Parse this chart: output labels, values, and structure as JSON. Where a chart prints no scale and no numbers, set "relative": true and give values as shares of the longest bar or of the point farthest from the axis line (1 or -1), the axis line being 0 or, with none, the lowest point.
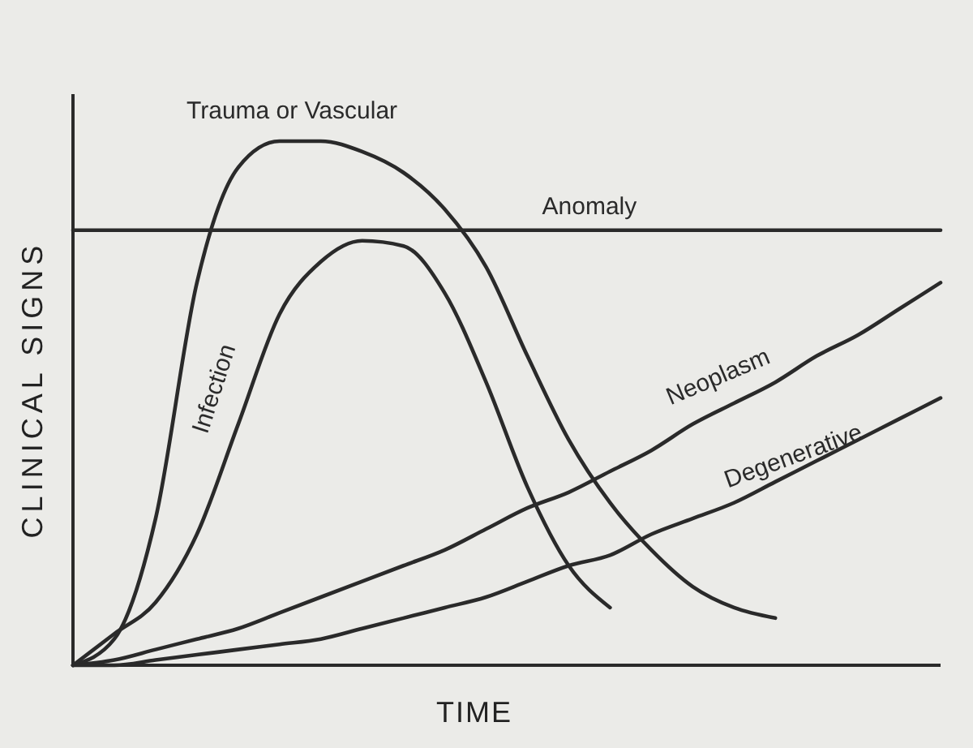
{
  "chart_data": {
    "type": "line",
    "relative": true,
    "xlabel": "TIME",
    "ylabel": "CLINICAL SIGNS",
    "categories": [
      null,
      null,
      null,
      null,
      null,
      null,
      null,
      null,
      null,
      null,
      null,
      null,
      null,
      null,
      null,
      null,
      null,
      null,
      null,
      null,
      null,
      null
    ],
    "series": [
      {
        "name": "Trauma or Vascular",
        "color": "#2a2a2a",
        "values": [
          0,
          0.05,
          0.28,
          0.73,
          0.95,
          1,
          1,
          0.98,
          0.94,
          0.87,
          0.76,
          0.59,
          0.43,
          0.31,
          0.22,
          0.15,
          0.11,
          0.09,
          null,
          null,
          null,
          null
        ]
      },
      {
        "name": "Anomaly",
        "color": "#2a2a2a",
        "values": [
          0.83,
          0.83,
          0.83,
          0.83,
          0.83,
          0.83,
          0.83,
          0.83,
          0.83,
          0.83,
          0.83,
          0.83,
          0.83,
          0.83,
          0.83,
          0.83,
          0.83,
          0.83,
          0.83,
          0.83,
          0.83,
          0.83
        ]
      },
      {
        "name": "Infection",
        "color": "#2a2a2a",
        "values": [
          0,
          0.06,
          0.12,
          0.25,
          0.46,
          0.67,
          0.77,
          0.81,
          0.8,
          0.71,
          0.54,
          0.34,
          0.19,
          0.11,
          null,
          null,
          null,
          null,
          null,
          null,
          null,
          null
        ]
      },
      {
        "name": "Neoplasm",
        "color": "#2a2a2a",
        "values": [
          0,
          0.01,
          0.03,
          0.05,
          0.07,
          0.1,
          0.13,
          0.16,
          0.19,
          0.22,
          0.26,
          0.3,
          0.33,
          0.37,
          0.41,
          0.46,
          0.5,
          0.54,
          0.59,
          0.63,
          0.68,
          0.73
        ]
      },
      {
        "name": "Degenerative",
        "color": "#2a2a2a",
        "values": [
          0,
          0,
          0.01,
          0.02,
          0.03,
          0.04,
          0.05,
          0.07,
          0.09,
          0.11,
          0.13,
          0.16,
          0.19,
          0.21,
          0.25,
          0.28,
          0.31,
          0.35,
          0.39,
          0.43,
          0.47,
          0.51
        ]
      }
    ]
  }
}
